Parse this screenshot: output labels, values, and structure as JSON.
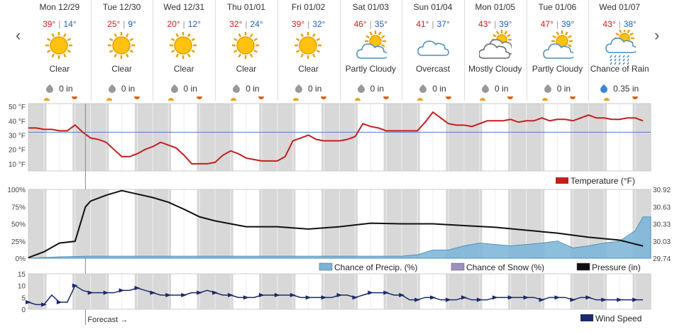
{
  "nav": {
    "prev_glyph": "‹",
    "next_glyph": "›"
  },
  "days": [
    {
      "date": "Mon 12/29",
      "hi": "39°",
      "lo": "14°",
      "icon": "sun-icon",
      "condition": "Clear",
      "precip": "0 in"
    },
    {
      "date": "Tue 12/30",
      "hi": "25°",
      "lo": "9°",
      "icon": "sun-icon",
      "condition": "Clear",
      "precip": "0 in"
    },
    {
      "date": "Wed 12/31",
      "hi": "20°",
      "lo": "12°",
      "icon": "sun-icon",
      "condition": "Clear",
      "precip": "0 in"
    },
    {
      "date": "Thu 01/01",
      "hi": "32°",
      "lo": "24°",
      "icon": "sun-icon",
      "condition": "Clear",
      "precip": "0 in"
    },
    {
      "date": "Fri 01/02",
      "hi": "39°",
      "lo": "32°",
      "icon": "sun-icon",
      "condition": "Clear",
      "precip": "0 in"
    },
    {
      "date": "Sat 01/03",
      "hi": "46°",
      "lo": "35°",
      "icon": "partly-cloudy-icon",
      "condition": "Partly Cloudy",
      "precip": "0 in"
    },
    {
      "date": "Sun 01/04",
      "hi": "41°",
      "lo": "37°",
      "icon": "cloud-icon",
      "condition": "Overcast",
      "precip": "0 in"
    },
    {
      "date": "Mon 01/05",
      "hi": "43°",
      "lo": "39°",
      "icon": "mostly-cloudy-icon",
      "condition": "Mostly Cloudy",
      "precip": "0 in"
    },
    {
      "date": "Tue 01/06",
      "hi": "47°",
      "lo": "39°",
      "icon": "partly-cloudy-icon",
      "condition": "Partly Cloudy",
      "precip": "0 in"
    },
    {
      "date": "Wed 01/07",
      "hi": "43°",
      "lo": "38°",
      "icon": "rain-icon",
      "condition": "Chance of Rain",
      "precip": "0.35 in"
    }
  ],
  "colors": {
    "temp_line": "#c41e1e",
    "freeze_line": "#4a7fc8",
    "pressure_line": "#111111",
    "precip_fill": "#7ab4d8",
    "precip_stroke": "#3a86b8",
    "snow_fill": "#9f8fc0",
    "wind": "#1a2a6c",
    "hi_text": "#d02020",
    "lo_text": "#2060c0",
    "night_band": "#d8d8d8"
  },
  "chart_data": [
    {
      "type": "line",
      "name_in_legend": "Temperature (°F)",
      "y_tick_labels": [
        "50 °F",
        "40 °F",
        "30 °F",
        "20 °F",
        "10 °F"
      ],
      "ylim": [
        5,
        52
      ],
      "freezing_reference": 32,
      "x_hours": [
        0,
        3,
        6,
        9,
        12,
        15,
        18,
        21,
        24,
        27,
        30,
        33,
        36,
        39,
        42,
        45,
        48,
        51,
        54,
        57,
        60,
        63,
        66,
        69,
        72,
        75,
        78,
        81,
        84,
        87,
        90,
        93,
        96,
        99,
        102,
        105,
        108,
        111,
        114,
        117,
        120,
        123,
        126,
        129,
        132,
        135,
        138,
        141,
        144,
        147,
        150,
        153,
        156,
        159,
        162,
        165,
        168,
        171,
        174,
        177,
        180,
        183,
        186,
        189,
        192,
        195,
        198,
        201,
        204,
        207,
        210,
        213,
        216,
        219,
        222,
        225,
        228,
        231,
        234,
        237
      ],
      "values": [
        35,
        35,
        34,
        34,
        33,
        33,
        37,
        32,
        28,
        27,
        25,
        20,
        15,
        15,
        17,
        20,
        22,
        25,
        23,
        21,
        16,
        10,
        10,
        10,
        11,
        16,
        19,
        17,
        14,
        13,
        12,
        12,
        12,
        15,
        26,
        28,
        30,
        27,
        26,
        26,
        26,
        27,
        29,
        38,
        36,
        35,
        33,
        33,
        33,
        33,
        33,
        39,
        46,
        42,
        38,
        37,
        37,
        36,
        38,
        40,
        40,
        40,
        41,
        39,
        40,
        40,
        42,
        40,
        41,
        41,
        40,
        42,
        44,
        42,
        42,
        41,
        41,
        42,
        42,
        40
      ],
      "forecast_label": "Forecast →"
    },
    {
      "type": "area",
      "left_tick_labels": [
        "100%",
        "75%",
        "50%",
        "25%",
        "0%"
      ],
      "right_tick_labels": [
        "30.92",
        "30.63",
        "30.33",
        "30.03",
        "29.74"
      ],
      "series": [
        {
          "name": "Chance of Precip. (%)",
          "x_hours": [
            0,
            12,
            24,
            36,
            48,
            60,
            72,
            84,
            96,
            108,
            120,
            132,
            144,
            150,
            156,
            162,
            168,
            174,
            180,
            186,
            192,
            198,
            204,
            210,
            216,
            222,
            228,
            234,
            237
          ],
          "values": [
            0,
            2,
            3,
            3,
            3,
            3,
            3,
            3,
            3,
            3,
            3,
            3,
            3,
            5,
            12,
            12,
            18,
            22,
            20,
            18,
            20,
            22,
            25,
            15,
            18,
            22,
            25,
            40,
            60
          ]
        },
        {
          "name": "Chance of Snow (%)",
          "values": [
            0
          ]
        },
        {
          "name": "Pressure (in)",
          "x_hours": [
            0,
            6,
            12,
            18,
            22,
            24,
            30,
            36,
            42,
            48,
            54,
            60,
            66,
            72,
            78,
            84,
            96,
            108,
            120,
            132,
            144,
            156,
            168,
            180,
            192,
            204,
            216,
            228,
            237
          ],
          "values": [
            29.75,
            29.85,
            30.0,
            30.03,
            30.62,
            30.72,
            30.82,
            30.9,
            30.84,
            30.78,
            30.7,
            30.58,
            30.45,
            30.38,
            30.33,
            30.28,
            30.28,
            30.24,
            30.28,
            30.34,
            30.33,
            30.33,
            30.3,
            30.27,
            30.22,
            30.17,
            30.1,
            30.05,
            29.95
          ]
        }
      ]
    },
    {
      "type": "line",
      "name_in_legend": "Wind Speed",
      "y_tick_labels": [
        "15",
        "10",
        "5",
        "0"
      ],
      "ylim": [
        0,
        15
      ],
      "x_hours": [
        0,
        3,
        6,
        9,
        12,
        15,
        18,
        21,
        24,
        27,
        30,
        33,
        36,
        39,
        42,
        45,
        48,
        51,
        54,
        57,
        60,
        63,
        66,
        69,
        72,
        75,
        78,
        81,
        84,
        87,
        90,
        93,
        96,
        99,
        102,
        105,
        108,
        111,
        114,
        117,
        120,
        123,
        126,
        129,
        132,
        135,
        138,
        141,
        144,
        147,
        150,
        153,
        156,
        159,
        162,
        165,
        168,
        171,
        174,
        177,
        180,
        183,
        186,
        189,
        192,
        195,
        198,
        201,
        204,
        207,
        210,
        213,
        216,
        219,
        222,
        225,
        228,
        231,
        234,
        237
      ],
      "values": [
        3,
        2,
        2,
        6,
        3,
        3,
        10,
        8,
        7,
        7,
        7,
        7,
        8,
        8,
        9,
        8,
        7,
        6,
        6,
        6,
        6,
        7,
        7,
        8,
        7,
        6,
        6,
        5,
        5,
        5,
        6,
        6,
        6,
        6,
        6,
        5,
        5,
        5,
        5,
        5,
        6,
        6,
        5,
        6,
        7,
        7,
        7,
        6,
        6,
        4,
        4,
        5,
        5,
        4,
        4,
        4,
        5,
        4,
        4,
        4,
        5,
        5,
        5,
        5,
        5,
        5,
        4,
        5,
        5,
        5,
        4,
        5,
        5,
        4,
        4,
        4,
        4,
        4,
        4,
        4
      ]
    }
  ]
}
